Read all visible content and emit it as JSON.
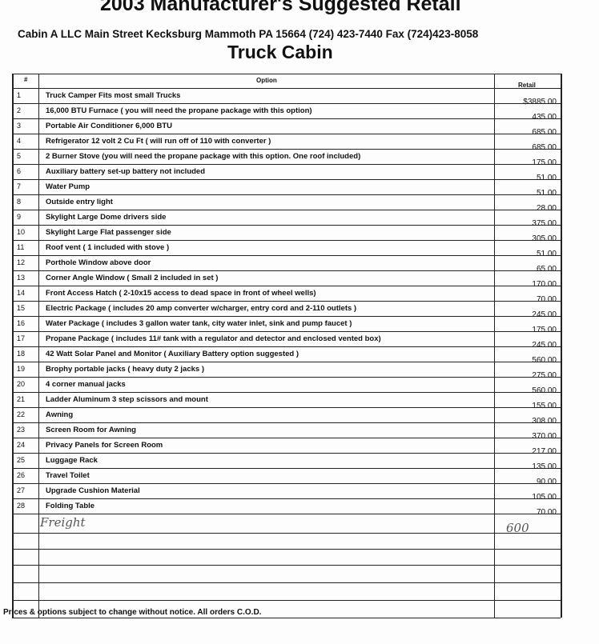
{
  "header": {
    "title": "2003 Manufacturer's Suggested Retail",
    "company": "Cabin A LLC  Main Street Kecksburg  Mammoth PA 15664 (724) 423-7440 Fax (724)423-8058",
    "subtitle": "Truck Cabin"
  },
  "table": {
    "columns": [
      "#",
      "Option",
      "Retail"
    ],
    "rows": [
      [
        "1",
        "Truck Camper Fits most small Trucks",
        "$3885.00"
      ],
      [
        "2",
        "16,000 BTU Furnace   ( you will need the propane package with this option)",
        "435.00"
      ],
      [
        "3",
        "Portable Air Conditioner  6,000 BTU",
        "685.00"
      ],
      [
        "4",
        "Refrigerator  12 volt 2 Cu Ft    ( will run off of 110 with converter )",
        "685.00"
      ],
      [
        "5",
        "2 Burner Stove  (you will need the propane package with this option. One roof included)",
        "175.00"
      ],
      [
        "6",
        "Auxiliary battery set-up  battery not included",
        "51.00"
      ],
      [
        "7",
        "Water Pump",
        "51.00"
      ],
      [
        "8",
        "Outside entry light",
        "28.00"
      ],
      [
        "9",
        "Skylight Large Dome drivers side",
        "375.00"
      ],
      [
        "10",
        "Skylight Large Flat passenger side",
        "305.00"
      ],
      [
        "11",
        "Roof vent   ( 1 included with stove )",
        "51.00"
      ],
      [
        "12",
        "Porthole Window above door",
        "65.00"
      ],
      [
        "13",
        "Corner Angle Window  ( Small 2 included in set )",
        "170.00"
      ],
      [
        "14",
        "Front Access Hatch  ( 2-10x15 access to dead space in front of wheel wells)",
        "70.00"
      ],
      [
        "15",
        "Electric Package ( includes 20 amp converter w/charger, entry cord and  2-110 outlets )",
        "245.00"
      ],
      [
        "16",
        "Water Package  ( includes 3 gallon water tank, city water inlet, sink and pump faucet )",
        "175.00"
      ],
      [
        "17",
        "Propane Package ( includes 11# tank with a regulator and detector and enclosed vented box)",
        "245.00"
      ],
      [
        "18",
        "42 Watt Solar Panel and Monitor   ( Auxiliary Battery option suggested )",
        "560.00"
      ],
      [
        "19",
        "Brophy portable jacks  ( heavy duty 2 jacks )",
        "275.00"
      ],
      [
        "20",
        "4 corner manual jacks",
        "560.00"
      ],
      [
        "21",
        "Ladder  Aluminum 3 step scissors  and mount",
        "155.00"
      ],
      [
        "22",
        "Awning",
        "308.00"
      ],
      [
        "23",
        "Screen Room for Awning",
        "370.00"
      ],
      [
        "24",
        "Privacy Panels for Screen Room",
        "217.00"
      ],
      [
        "25",
        "Luggage Rack",
        "135.00"
      ],
      [
        "26",
        "Travel Toilet",
        "90.00"
      ],
      [
        "27",
        "Upgrade Cushion Material",
        "105.00"
      ],
      [
        "28",
        "Folding Table",
        "70.00"
      ]
    ]
  },
  "freight": {
    "label": "Freight",
    "value": "600"
  },
  "footer": "Prices & options subject to change without notice.  All orders C.O.D."
}
